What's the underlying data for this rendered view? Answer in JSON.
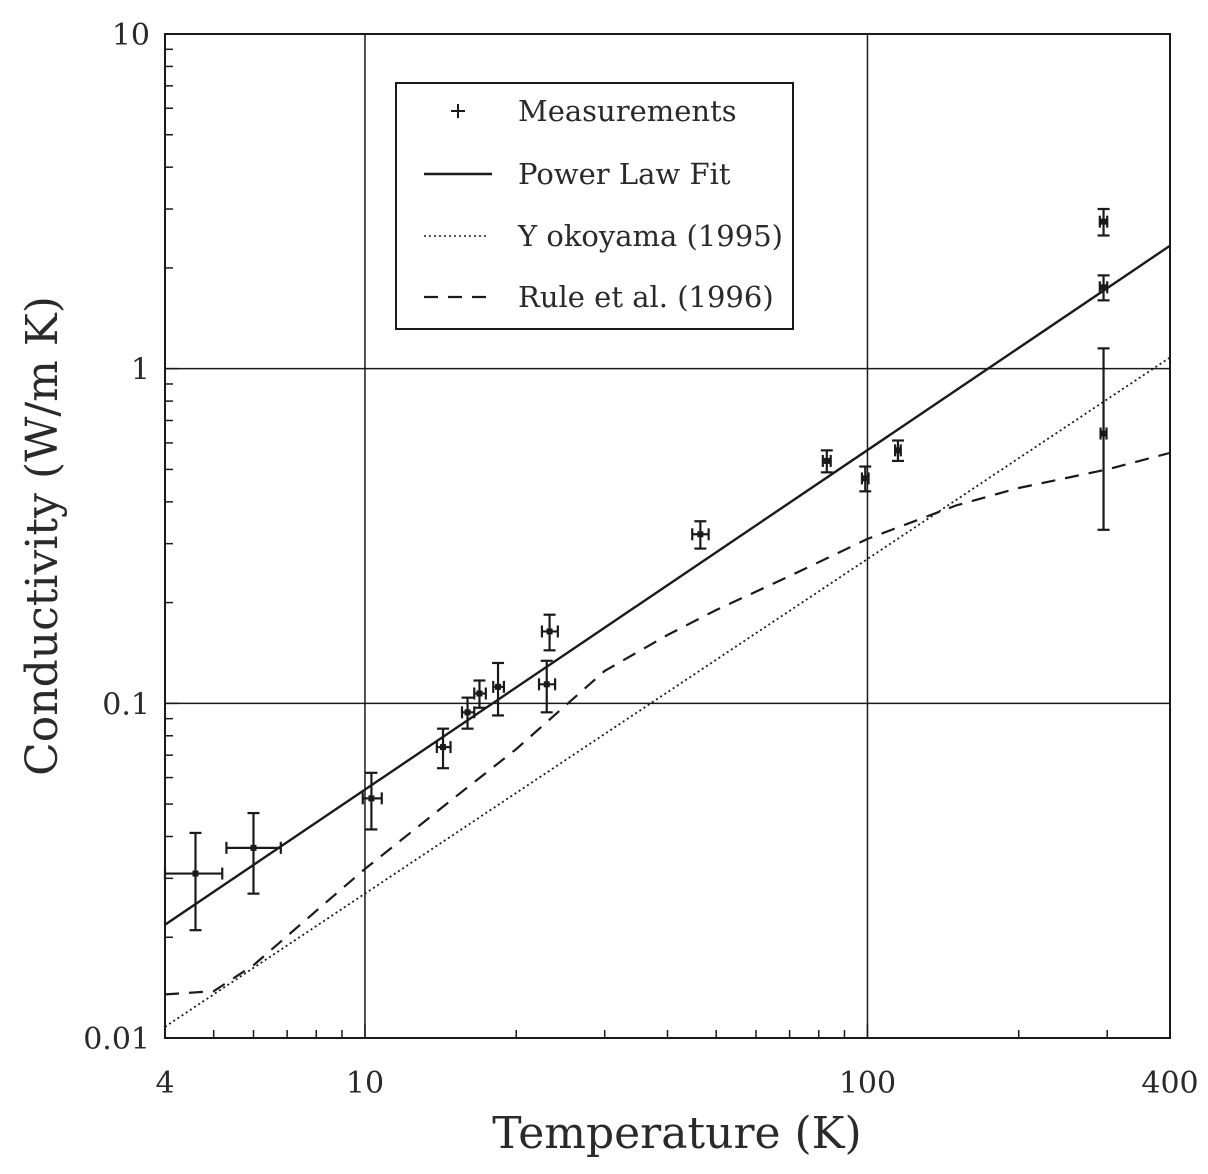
{
  "chart_data": {
    "type": "scatter",
    "title": "",
    "xlabel": "Temperature (K)",
    "ylabel": "Conductivity (W/m K)",
    "xscale": "log",
    "yscale": "log",
    "xlim": [
      4,
      400
    ],
    "ylim": [
      0.01,
      10
    ],
    "x_tick_labels": [
      "4",
      "10",
      "100",
      "400"
    ],
    "y_tick_labels": [
      "0.01",
      "0.1",
      "1",
      "10"
    ],
    "grid": "major",
    "legend_position": "top-left",
    "series": [
      {
        "name": "Measurements",
        "style": "points-with-error-bars",
        "points": [
          {
            "x": 4.6,
            "y": 0.031,
            "xlo": 4.0,
            "xhi": 5.2,
            "ylo": 0.021,
            "yhi": 0.041
          },
          {
            "x": 6.0,
            "y": 0.037,
            "xlo": 5.3,
            "xhi": 6.8,
            "ylo": 0.027,
            "yhi": 0.047
          },
          {
            "x": 10.3,
            "y": 0.052,
            "xlo": 9.9,
            "xhi": 10.8,
            "ylo": 0.042,
            "yhi": 0.062
          },
          {
            "x": 14.3,
            "y": 0.074,
            "xlo": 13.9,
            "xhi": 14.8,
            "ylo": 0.064,
            "yhi": 0.084
          },
          {
            "x": 16.0,
            "y": 0.094,
            "xlo": 15.6,
            "xhi": 16.5,
            "ylo": 0.084,
            "yhi": 0.104
          },
          {
            "x": 16.9,
            "y": 0.107,
            "xlo": 16.5,
            "xhi": 17.4,
            "ylo": 0.097,
            "yhi": 0.117
          },
          {
            "x": 18.4,
            "y": 0.112,
            "xlo": 18.0,
            "xhi": 18.9,
            "ylo": 0.092,
            "yhi": 0.132
          },
          {
            "x": 23.0,
            "y": 0.114,
            "xlo": 22.2,
            "xhi": 23.9,
            "ylo": 0.094,
            "yhi": 0.134
          },
          {
            "x": 23.3,
            "y": 0.164,
            "xlo": 22.5,
            "xhi": 24.2,
            "ylo": 0.144,
            "yhi": 0.184
          },
          {
            "x": 46.5,
            "y": 0.32,
            "xlo": 44.8,
            "xhi": 48.3,
            "ylo": 0.29,
            "yhi": 0.35
          },
          {
            "x": 83.0,
            "y": 0.53,
            "xlo": 81.5,
            "xhi": 84.5,
            "ylo": 0.49,
            "yhi": 0.57
          },
          {
            "x": 99.0,
            "y": 0.47,
            "xlo": 97.5,
            "xhi": 100.5,
            "ylo": 0.43,
            "yhi": 0.51
          },
          {
            "x": 115.0,
            "y": 0.57,
            "xlo": 113.5,
            "xhi": 116.5,
            "ylo": 0.53,
            "yhi": 0.61
          },
          {
            "x": 295.0,
            "y": 2.75,
            "xlo": 290.0,
            "xhi": 300.0,
            "ylo": 2.5,
            "yhi": 3.0
          },
          {
            "x": 295.0,
            "y": 1.75,
            "xlo": 290.0,
            "xhi": 300.0,
            "ylo": 1.6,
            "yhi": 1.9
          },
          {
            "x": 295.0,
            "y": 0.64,
            "xlo": 291.0,
            "xhi": 299.0,
            "ylo": 0.33,
            "yhi": 1.15
          }
        ]
      },
      {
        "name": "Power Law Fit",
        "style": "solid",
        "x": [
          4,
          400
        ],
        "y": [
          0.0218,
          2.33
        ]
      },
      {
        "name": "Y okoyama (1995)",
        "style": "dotted",
        "x": [
          4,
          400
        ],
        "y": [
          0.0108,
          1.08
        ]
      },
      {
        "name": "Rule et al. (1996)",
        "style": "dashed",
        "x": [
          4,
          5,
          6,
          8,
          10,
          15,
          20,
          30,
          40,
          50,
          70,
          100,
          150,
          200,
          300,
          400
        ],
        "y": [
          0.0135,
          0.0138,
          0.0165,
          0.024,
          0.032,
          0.052,
          0.073,
          0.125,
          0.16,
          0.19,
          0.24,
          0.31,
          0.39,
          0.44,
          0.5,
          0.56
        ]
      }
    ]
  }
}
